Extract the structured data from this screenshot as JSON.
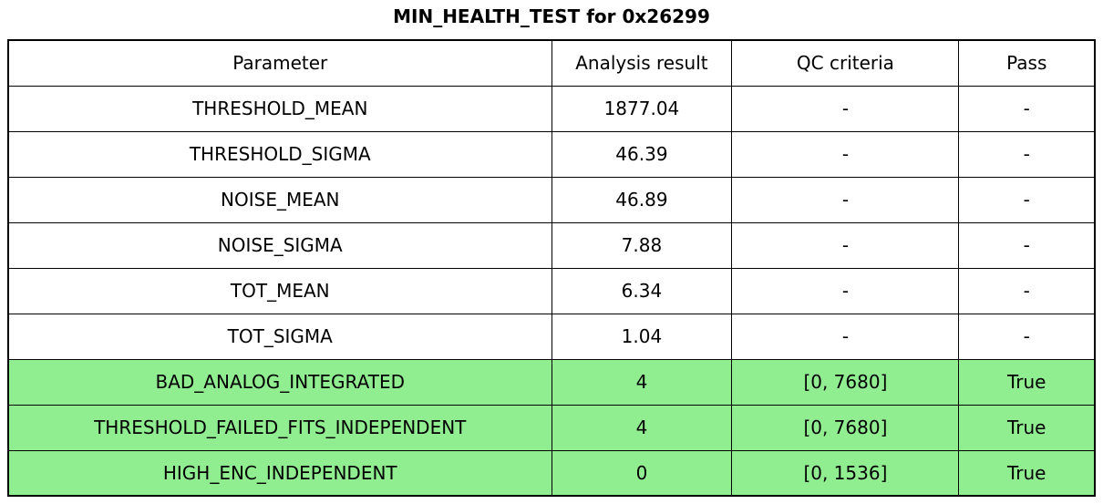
{
  "title": "MIN_HEALTH_TEST for 0x26299",
  "colors": {
    "pass_row_green": "#90EE90",
    "border": "#000000",
    "background": "#ffffff",
    "text": "#000000"
  },
  "chart_data": {
    "type": "table",
    "title": "MIN_HEALTH_TEST for 0x26299",
    "columns": [
      "Parameter",
      "Analysis result",
      "QC criteria",
      "Pass"
    ],
    "rows": [
      {
        "cells": [
          "THRESHOLD_MEAN",
          "1877.04",
          "-",
          "-"
        ],
        "highlight": false
      },
      {
        "cells": [
          "THRESHOLD_SIGMA",
          "46.39",
          "-",
          "-"
        ],
        "highlight": false
      },
      {
        "cells": [
          "NOISE_MEAN",
          "46.89",
          "-",
          "-"
        ],
        "highlight": false
      },
      {
        "cells": [
          "NOISE_SIGMA",
          "7.88",
          "-",
          "-"
        ],
        "highlight": false
      },
      {
        "cells": [
          "TOT_MEAN",
          "6.34",
          "-",
          "-"
        ],
        "highlight": false
      },
      {
        "cells": [
          "TOT_SIGMA",
          "1.04",
          "-",
          "-"
        ],
        "highlight": false
      },
      {
        "cells": [
          "BAD_ANALOG_INTEGRATED",
          "4",
          "[0, 7680]",
          "True"
        ],
        "highlight": true
      },
      {
        "cells": [
          "THRESHOLD_FAILED_FITS_INDEPENDENT",
          "4",
          "[0, 7680]",
          "True"
        ],
        "highlight": true
      },
      {
        "cells": [
          "HIGH_ENC_INDEPENDENT",
          "0",
          "[0, 1536]",
          "True"
        ],
        "highlight": true
      }
    ],
    "highlight_color": "#90EE90",
    "layout": {
      "legend": "none",
      "grid": "full-cell-borders",
      "col_widths_pct": [
        50.0,
        16.6,
        20.9,
        12.5
      ],
      "highlight_meaning": "row passed QC criteria"
    }
  }
}
